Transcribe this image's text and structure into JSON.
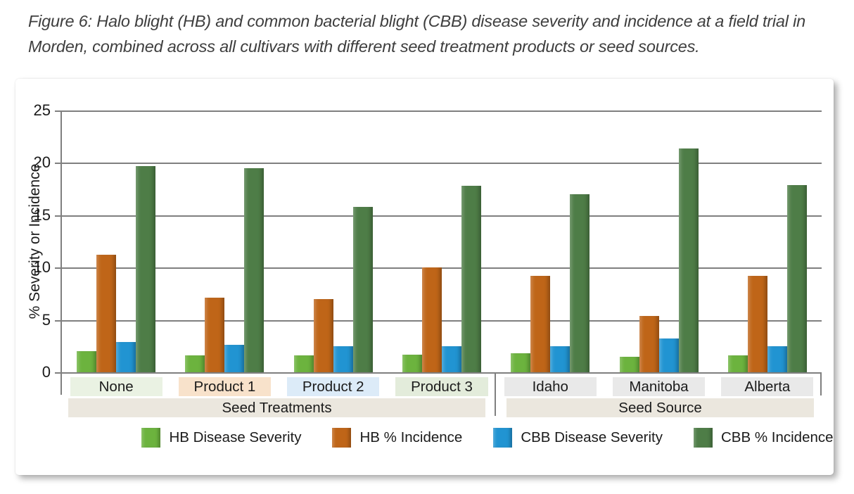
{
  "figure": {
    "caption": "Figure 6: Halo blight (HB) and common bacterial blight (CBB) disease severity and incidence at a field trial in Morden, combined across all cultivars with different seed treatment products or seed sources."
  },
  "chart_data": {
    "type": "bar",
    "title": "",
    "ylabel": "% Severity or Incidence",
    "ylim": [
      0,
      25
    ],
    "yticks": [
      0,
      5,
      10,
      15,
      20,
      25
    ],
    "grid": true,
    "legend_position": "bottom",
    "categories": [
      "None",
      "Product 1",
      "Product 2",
      "Product 3",
      "Idaho",
      "Manitoba",
      "Alberta"
    ],
    "category_bg": [
      "#eaf2e3",
      "#f8e2cb",
      "#dcebf8",
      "#e3ecdb",
      "#e9e9e9",
      "#e9e9e9",
      "#e9e9e9"
    ],
    "sections": [
      {
        "label": "Seed Treatments",
        "start": 0,
        "end": 3
      },
      {
        "label": "Seed Source",
        "start": 4,
        "end": 6
      }
    ],
    "section_bg": "#ebe7de",
    "axis_color": "#7f7f7f",
    "series": [
      {
        "name": "HB Disease Severity",
        "color": "#6cb33e",
        "values": [
          2.0,
          1.6,
          1.6,
          1.7,
          1.8,
          1.5,
          1.6
        ]
      },
      {
        "name": "HB % Incidence",
        "color": "#bf6518",
        "values": [
          11.2,
          7.1,
          7.0,
          10.0,
          9.2,
          5.4,
          9.2
        ]
      },
      {
        "name": "CBB Disease Severity",
        "color": "#2194d2",
        "values": [
          2.9,
          2.6,
          2.5,
          2.5,
          2.5,
          3.2,
          2.5
        ]
      },
      {
        "name": "CBB % Incidence",
        "color": "#4e7d47",
        "values": [
          19.7,
          19.5,
          15.8,
          17.8,
          17.0,
          21.4,
          17.9
        ]
      }
    ]
  }
}
